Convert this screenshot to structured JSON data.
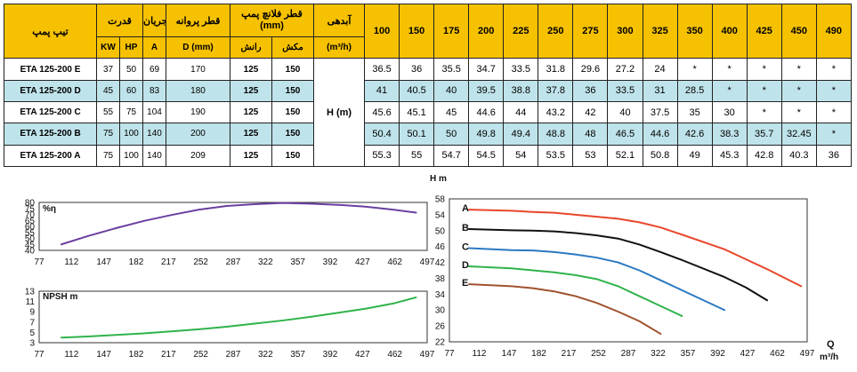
{
  "table": {
    "hdr_model": "تیپ پمپ",
    "hdr_power": "قدرت",
    "hdr_current": "جریان",
    "hdr_impeller": "قطر پروانه",
    "hdr_flange": "قطر فلانچ پمپ (mm)",
    "hdr_flow": "آبدهی",
    "hdr_kw": "KW",
    "hdr_hp": "HP",
    "hdr_a": "A",
    "hdr_d": "D (mm)",
    "hdr_discharge": "رانش",
    "hdr_suction": "مکش",
    "hdr_flow_unit": "(m³/h)",
    "head_label": "H (m)",
    "flows": [
      "100",
      "150",
      "175",
      "200",
      "225",
      "250",
      "275",
      "300",
      "325",
      "350",
      "400",
      "425",
      "450",
      "490"
    ],
    "rows": [
      {
        "model": "ETA 125-200 E",
        "kw": "37",
        "hp": "50",
        "a": "69",
        "d": "170",
        "discharge": "125",
        "suction": "150",
        "heads": [
          "36.5",
          "36",
          "35.5",
          "34.7",
          "33.5",
          "31.8",
          "29.6",
          "27.2",
          "24",
          "*",
          "*",
          "*",
          "*",
          "*"
        ]
      },
      {
        "model": "ETA 125-200 D",
        "kw": "45",
        "hp": "60",
        "a": "83",
        "d": "180",
        "discharge": "125",
        "suction": "150",
        "heads": [
          "41",
          "40.5",
          "40",
          "39.5",
          "38.8",
          "37.8",
          "36",
          "33.5",
          "31",
          "28.5",
          "*",
          "*",
          "*",
          "*"
        ]
      },
      {
        "model": "ETA 125-200 C",
        "kw": "55",
        "hp": "75",
        "a": "104",
        "d": "190",
        "discharge": "125",
        "suction": "150",
        "heads": [
          "45.6",
          "45.1",
          "45",
          "44.6",
          "44",
          "43.2",
          "42",
          "40",
          "37.5",
          "35",
          "30",
          "*",
          "*",
          "*"
        ]
      },
      {
        "model": "ETA 125-200 B",
        "kw": "75",
        "hp": "100",
        "a": "140",
        "d": "200",
        "discharge": "125",
        "suction": "150",
        "heads": [
          "50.4",
          "50.1",
          "50",
          "49.8",
          "49.4",
          "48.8",
          "48",
          "46.5",
          "44.6",
          "42.6",
          "38.3",
          "35.7",
          "32.45",
          "*"
        ]
      },
      {
        "model": "ETA 125-200 A",
        "kw": "75",
        "hp": "100",
        "a": "140",
        "d": "209",
        "discharge": "125",
        "suction": "150",
        "heads": [
          "55.3",
          "55",
          "54.7",
          "54.5",
          "54",
          "53.5",
          "53",
          "52.1",
          "50.8",
          "49",
          "45.3",
          "42.8",
          "40.3",
          "36"
        ]
      }
    ]
  },
  "chart_data": [
    {
      "type": "line",
      "ylabel": "%η",
      "xlim": [
        77,
        497
      ],
      "ylim": [
        40,
        80
      ],
      "xticks": [
        77,
        112,
        147,
        182,
        217,
        252,
        287,
        322,
        357,
        392,
        427,
        462,
        497
      ],
      "yticks": [
        40,
        45,
        50,
        55,
        60,
        65,
        70,
        75,
        80
      ],
      "grid": false,
      "series": [
        {
          "color": "#6b3fa0",
          "x": [
            101,
            130,
            160,
            190,
            220,
            250,
            280,
            310,
            340,
            370,
            400,
            430,
            460,
            485
          ],
          "y": [
            45,
            52,
            58.5,
            64.5,
            69.5,
            74,
            77,
            78.5,
            79.5,
            79,
            78,
            76.5,
            74,
            71.5
          ]
        }
      ]
    },
    {
      "type": "line",
      "ylabel": "NPSH m",
      "xlim": [
        77,
        497
      ],
      "ylim": [
        3,
        13
      ],
      "xticks": [
        77,
        112,
        147,
        182,
        217,
        252,
        287,
        322,
        357,
        392,
        427,
        462,
        497
      ],
      "yticks": [
        3,
        5,
        7,
        9,
        11,
        13
      ],
      "grid": false,
      "series": [
        {
          "color": "#2fb34a",
          "x": [
            101,
            130,
            160,
            190,
            220,
            250,
            280,
            310,
            340,
            370,
            400,
            430,
            460,
            485
          ],
          "y": [
            4.0,
            4.2,
            4.5,
            4.8,
            5.2,
            5.6,
            6.1,
            6.7,
            7.3,
            8.0,
            8.8,
            9.6,
            10.6,
            11.8
          ]
        }
      ]
    },
    {
      "type": "line",
      "ylabel": "H m",
      "xlabel": "Q m³/h",
      "xlim": [
        77,
        497
      ],
      "ylim": [
        22,
        58
      ],
      "xticks": [
        77,
        112,
        147,
        182,
        217,
        252,
        287,
        322,
        357,
        392,
        427,
        462,
        497
      ],
      "yticks": [
        22,
        26,
        30,
        34,
        38,
        42,
        46,
        50,
        54,
        58
      ],
      "grid": false,
      "series": [
        {
          "name": "A",
          "color": "#e8472b",
          "x": [
            100,
            150,
            175,
            200,
            225,
            250,
            275,
            300,
            325,
            350,
            400,
            425,
            450,
            490
          ],
          "y": [
            55.3,
            55,
            54.7,
            54.5,
            54,
            53.5,
            53,
            52.1,
            50.8,
            49,
            45.3,
            42.8,
            40.3,
            36
          ]
        },
        {
          "name": "B",
          "color": "#111111",
          "x": [
            100,
            150,
            175,
            200,
            225,
            250,
            275,
            300,
            325,
            350,
            400,
            425,
            450
          ],
          "y": [
            50.4,
            50.1,
            50,
            49.8,
            49.4,
            48.8,
            48,
            46.5,
            44.6,
            42.6,
            38.3,
            35.7,
            32.45
          ]
        },
        {
          "name": "C",
          "color": "#2b78c2",
          "x": [
            100,
            150,
            175,
            200,
            225,
            250,
            275,
            300,
            325,
            350,
            400
          ],
          "y": [
            45.6,
            45.1,
            45,
            44.6,
            44,
            43.2,
            42,
            40,
            37.5,
            35,
            30
          ]
        },
        {
          "name": "D",
          "color": "#2fb34a",
          "x": [
            100,
            150,
            175,
            200,
            225,
            250,
            275,
            300,
            325,
            350
          ],
          "y": [
            41,
            40.5,
            40,
            39.5,
            38.8,
            37.8,
            36,
            33.5,
            31,
            28.5
          ]
        },
        {
          "name": "E",
          "color": "#a0522d",
          "x": [
            100,
            150,
            175,
            200,
            225,
            250,
            275,
            300,
            325
          ],
          "y": [
            36.5,
            36,
            35.5,
            34.7,
            33.5,
            31.8,
            29.6,
            27.2,
            24
          ]
        }
      ]
    }
  ]
}
